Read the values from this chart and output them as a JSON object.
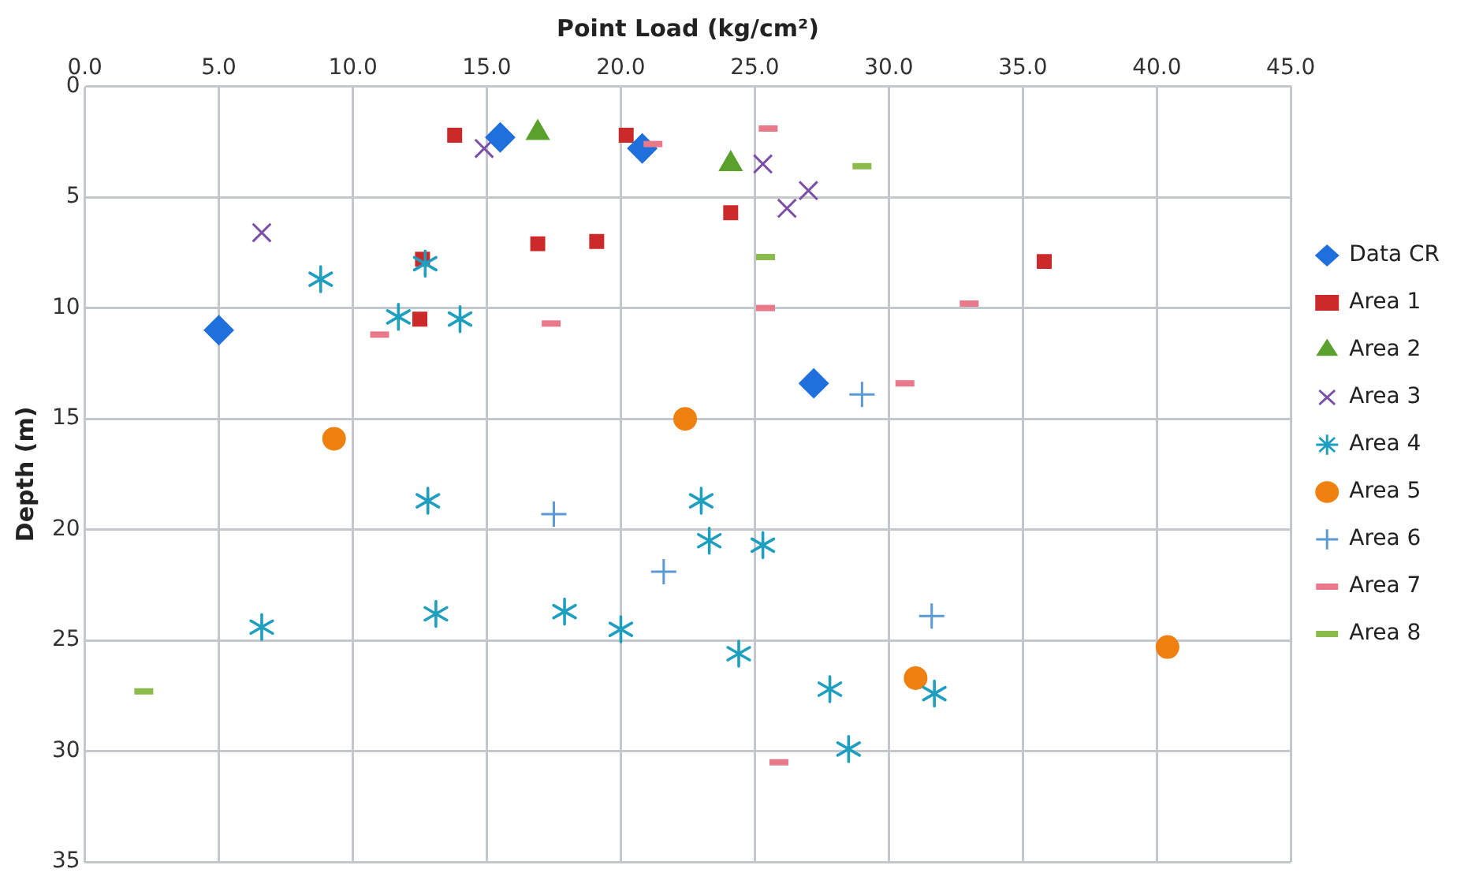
{
  "chart_data": {
    "type": "scatter",
    "xlabel": "Point Load (kg/cm²)",
    "ylabel": "Depth (m)",
    "xlim": [
      0,
      45
    ],
    "xticks": [
      {
        "value": 0,
        "label": "0.0"
      },
      {
        "value": 5,
        "label": "5.0"
      },
      {
        "value": 10,
        "label": "10.0"
      },
      {
        "value": 15,
        "label": "15.0"
      },
      {
        "value": 20,
        "label": "20.0"
      },
      {
        "value": 25,
        "label": "25.0"
      },
      {
        "value": 30,
        "label": "30.0"
      },
      {
        "value": 35,
        "label": "35.0"
      },
      {
        "value": 40,
        "label": "40.0"
      },
      {
        "value": 45,
        "label": "45.0"
      }
    ],
    "ylim": [
      35,
      0
    ],
    "yticks": [
      0,
      5,
      10,
      15,
      20,
      25,
      30,
      35
    ],
    "grid": true,
    "legend": "right",
    "series": [
      {
        "name": "Data CR",
        "color": "#1f6fdc",
        "marker": "diamond",
        "x": [
          5.0,
          15.5,
          20.8,
          27.2
        ],
        "values": [
          11.0,
          2.3,
          2.8,
          13.4
        ]
      },
      {
        "name": "Area 1",
        "color": "#cc2a2a",
        "marker": "square",
        "x": [
          13.8,
          20.2,
          12.6,
          16.9,
          19.1,
          12.5,
          24.1,
          35.8
        ],
        "values": [
          2.2,
          2.2,
          7.8,
          7.1,
          7.0,
          10.5,
          5.7,
          7.9
        ]
      },
      {
        "name": "Area 2",
        "color": "#5aa02c",
        "marker": "triangle",
        "x": [
          16.9,
          24.1
        ],
        "values": [
          2.1,
          3.5
        ]
      },
      {
        "name": "Area 3",
        "color": "#7b4fa8",
        "marker": "x",
        "x": [
          14.9,
          6.6,
          25.3,
          26.2,
          27.0
        ],
        "values": [
          2.8,
          6.6,
          3.5,
          5.5,
          4.7
        ]
      },
      {
        "name": "Area 4",
        "color": "#1f9fbf",
        "marker": "cross",
        "x": [
          8.8,
          12.7,
          11.7,
          14.0,
          12.8,
          23.0,
          23.3,
          25.3,
          6.6,
          13.1,
          17.9,
          20.0,
          24.4,
          27.8,
          31.7,
          28.5
        ],
        "values": [
          8.7,
          8.0,
          10.4,
          10.5,
          18.7,
          18.7,
          20.5,
          20.7,
          24.4,
          23.8,
          23.7,
          24.5,
          25.6,
          27.2,
          27.4,
          29.9
        ]
      },
      {
        "name": "Area 5",
        "color": "#ee8010",
        "marker": "circle",
        "x": [
          9.3,
          22.4,
          31.0,
          40.4
        ],
        "values": [
          15.9,
          15.0,
          26.7,
          25.3
        ]
      },
      {
        "name": "Area 6",
        "color": "#5b9bd5",
        "marker": "plus",
        "x": [
          17.5,
          29.0,
          21.6,
          31.6
        ],
        "values": [
          19.3,
          13.9,
          21.9,
          23.9
        ]
      },
      {
        "name": "Area 7",
        "color": "#e8788a",
        "x": [
          25.5,
          21.2,
          25.4,
          33.0,
          11.0,
          17.4,
          30.6,
          25.9
        ],
        "values": [
          1.9,
          2.6,
          10.0,
          9.8,
          11.2,
          10.7,
          13.4,
          30.5
        ]
      },
      {
        "name": "Area 8",
        "color": "#8bbb4a",
        "x": [
          29.0,
          25.4,
          2.2
        ],
        "values": [
          3.6,
          7.7,
          27.3
        ]
      }
    ]
  }
}
